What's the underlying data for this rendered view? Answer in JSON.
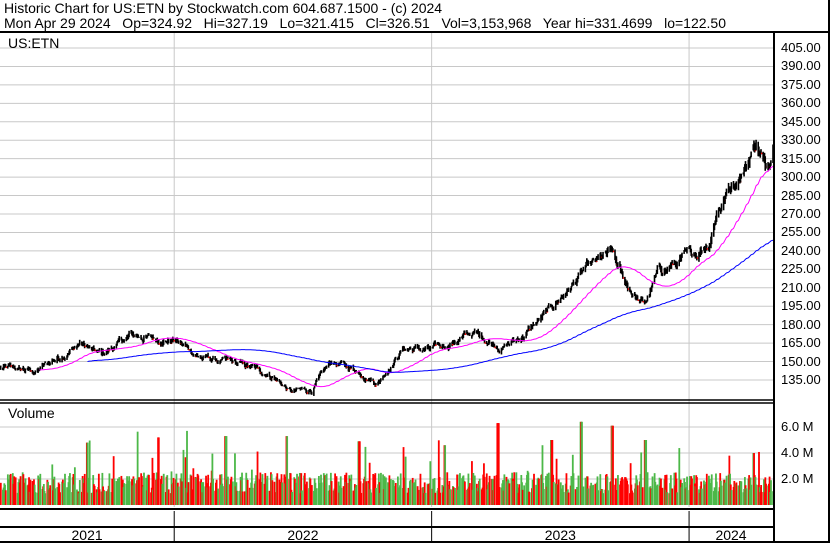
{
  "header": {
    "title": "Historic Chart for US:ETN by Stockwatch.com 604.687.1500 - (c) 2024",
    "quote": "Mon Apr 29 2024   Op=324.92   Hi=327.19   Lo=321.415   Cl=326.51   Vol=3,153,968   Year hi=331.4699   lo=122.50"
  },
  "chart_data": {
    "type": "line",
    "symbol": "US:ETN",
    "volume_label": "Volume",
    "x_range": [
      "2021-04-29",
      "2024-04-29"
    ],
    "year_labels": [
      "2021",
      "2022",
      "2023",
      "2024"
    ],
    "price_ylim": [
      135,
      405
    ],
    "price_ticks": [
      "405.00",
      "390.00",
      "375.00",
      "360.00",
      "345.00",
      "330.00",
      "315.00",
      "300.00",
      "285.00",
      "270.00",
      "255.00",
      "240.00",
      "225.00",
      "210.00",
      "195.00",
      "180.00",
      "165.00",
      "150.00",
      "135.00"
    ],
    "volume_ticks": [
      "6.0 M",
      "4.0 M",
      "2.0 M"
    ],
    "grid": true,
    "colors": {
      "price": "#000000",
      "ma_short": "#ff00ff",
      "ma_long": "#0000ff",
      "vol_up": "#4cb848",
      "vol_down": "#ff0000",
      "grid": "#c8c8c8"
    },
    "close_anchors": [
      [
        "2021-04-29",
        145
      ],
      [
        "2021-06-18",
        141.5
      ],
      [
        "2021-08-21",
        165
      ],
      [
        "2021-09-19",
        155
      ],
      [
        "2021-11-01",
        171
      ],
      [
        "2022-01-04",
        167
      ],
      [
        "2022-02-09",
        153
      ],
      [
        "2022-04-07",
        147
      ],
      [
        "2022-05-19",
        139
      ],
      [
        "2022-06-17",
        125
      ],
      [
        "2022-07-15",
        127
      ],
      [
        "2022-08-13",
        150
      ],
      [
        "2022-09-25",
        141
      ],
      [
        "2022-10-16",
        133
      ],
      [
        "2022-11-21",
        161
      ],
      [
        "2023-01-02",
        159
      ],
      [
        "2023-03-01",
        173
      ],
      [
        "2023-04-12",
        162
      ],
      [
        "2023-05-11",
        171
      ],
      [
        "2023-06-15",
        190
      ],
      [
        "2023-08-04",
        223
      ],
      [
        "2023-09-13",
        237
      ],
      [
        "2023-09-30",
        215
      ],
      [
        "2023-10-29",
        195
      ],
      [
        "2023-11-19",
        223
      ],
      [
        "2024-01-08",
        237
      ],
      [
        "2024-01-30",
        249
      ],
      [
        "2024-02-09",
        273
      ],
      [
        "2024-03-01",
        294
      ],
      [
        "2024-03-21",
        310
      ],
      [
        "2024-04-05",
        329
      ],
      [
        "2024-04-19",
        306
      ],
      [
        "2024-04-29",
        326.51
      ]
    ],
    "volume_typical_millions": 1.8,
    "volume_spikes_millions": [
      [
        "2021-08-30",
        4.8
      ],
      [
        "2021-12-10",
        5.2
      ],
      [
        "2022-03-15",
        5.3
      ],
      [
        "2022-06-10",
        5.3
      ],
      [
        "2022-09-20",
        4.9
      ],
      [
        "2023-01-20",
        4.6
      ],
      [
        "2023-04-05",
        6.3
      ],
      [
        "2023-06-20",
        5.0
      ],
      [
        "2023-08-01",
        6.4
      ],
      [
        "2023-09-14",
        6.1
      ],
      [
        "2023-10-31",
        5.0
      ],
      [
        "2024-04-01",
        4.0
      ]
    ]
  }
}
